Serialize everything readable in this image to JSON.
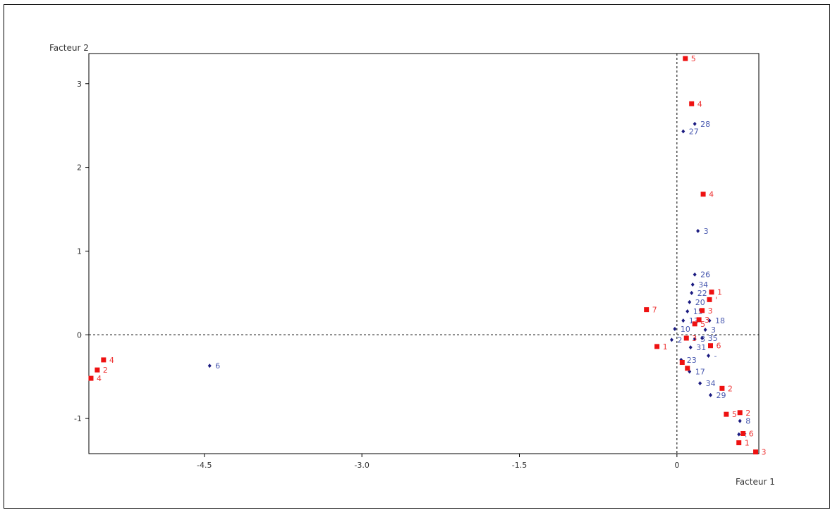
{
  "chart_data": {
    "type": "scatter",
    "xlabel": "Facteur 1",
    "ylabel": "Facteur 2",
    "xlim": [
      -5.6,
      0.78
    ],
    "ylim": [
      -1.42,
      3.36
    ],
    "x_ticks": [
      {
        "v": -4.5,
        "label": "-4.5"
      },
      {
        "v": -3.0,
        "label": "-3.0"
      },
      {
        "v": -1.5,
        "label": "-1.5"
      },
      {
        "v": 0,
        "label": "0"
      }
    ],
    "y_ticks": [
      {
        "v": 3,
        "label": "3"
      },
      {
        "v": 2,
        "label": "2"
      },
      {
        "v": 1,
        "label": "1"
      },
      {
        "v": 0,
        "label": "0"
      },
      {
        "v": -1,
        "label": "-1"
      }
    ],
    "series": [
      {
        "marker": "diamond",
        "color": "#1a1a80",
        "label_color": "#4a5ab0",
        "points": [
          {
            "x": -4.45,
            "y": -0.37,
            "label": "6"
          },
          {
            "x": 0.06,
            "y": 2.43,
            "label": "27"
          },
          {
            "x": 0.17,
            "y": 2.52,
            "label": "28"
          },
          {
            "x": 0.2,
            "y": 1.24,
            "label": "3"
          },
          {
            "x": 0.17,
            "y": 0.72,
            "label": "26"
          },
          {
            "x": 0.15,
            "y": 0.6,
            "label": "34"
          },
          {
            "x": 0.14,
            "y": 0.5,
            "label": "22"
          },
          {
            "x": 0.12,
            "y": 0.39,
            "label": "20"
          },
          {
            "x": 0.1,
            "y": 0.28,
            "label": "15"
          },
          {
            "x": 0.06,
            "y": 0.17,
            "label": "13"
          },
          {
            "x": 0.31,
            "y": 0.17,
            "label": "18"
          },
          {
            "x": 0.27,
            "y": 0.06,
            "label": "3"
          },
          {
            "x": -0.02,
            "y": 0.07,
            "label": "10"
          },
          {
            "x": -0.05,
            "y": -0.06,
            "label": "2"
          },
          {
            "x": 0.17,
            "y": -0.05,
            "label": "3"
          },
          {
            "x": 0.24,
            "y": -0.04,
            "label": "35"
          },
          {
            "x": 0.13,
            "y": -0.15,
            "label": "31"
          },
          {
            "x": 0.3,
            "y": -0.25,
            "label": "-"
          },
          {
            "x": 0.04,
            "y": -0.3,
            "label": "23"
          },
          {
            "x": 0.12,
            "y": -0.44,
            "label": "17"
          },
          {
            "x": 0.22,
            "y": -0.58,
            "label": "34"
          },
          {
            "x": 0.32,
            "y": -0.72,
            "label": "29"
          },
          {
            "x": 0.6,
            "y": -1.03,
            "label": "8"
          },
          {
            "x": 0.59,
            "y": -1.19,
            "label": ":"
          }
        ]
      },
      {
        "marker": "square",
        "color": "#ee1111",
        "label_color": "#ee3333",
        "points": [
          {
            "x": -5.58,
            "y": -0.52,
            "label": "4"
          },
          {
            "x": -5.52,
            "y": -0.42,
            "label": "2"
          },
          {
            "x": -5.46,
            "y": -0.3,
            "label": "4"
          },
          {
            "x": 0.08,
            "y": 3.3,
            "label": "5"
          },
          {
            "x": 0.14,
            "y": 2.76,
            "label": "4"
          },
          {
            "x": 0.25,
            "y": 1.68,
            "label": "4"
          },
          {
            "x": -0.29,
            "y": 0.3,
            "label": "7"
          },
          {
            "x": 0.33,
            "y": 0.51,
            "label": "1"
          },
          {
            "x": 0.31,
            "y": 0.42,
            "label": "'"
          },
          {
            "x": 0.24,
            "y": 0.29,
            "label": "3"
          },
          {
            "x": 0.21,
            "y": 0.18,
            "label": "3"
          },
          {
            "x": 0.17,
            "y": 0.13,
            "label": "5"
          },
          {
            "x": 0.09,
            "y": -0.04,
            "label": "3"
          },
          {
            "x": 0.32,
            "y": -0.13,
            "label": "6"
          },
          {
            "x": -0.19,
            "y": -0.14,
            "label": "1"
          },
          {
            "x": 0.05,
            "y": -0.33,
            "label": ""
          },
          {
            "x": 0.1,
            "y": -0.4,
            "label": ""
          },
          {
            "x": 0.43,
            "y": -0.64,
            "label": "2"
          },
          {
            "x": 0.47,
            "y": -0.95,
            "label": "5"
          },
          {
            "x": 0.6,
            "y": -0.93,
            "label": "2"
          },
          {
            "x": 0.63,
            "y": -1.18,
            "label": "6"
          },
          {
            "x": 0.59,
            "y": -1.29,
            "label": "1"
          },
          {
            "x": 0.75,
            "y": -1.4,
            "label": "3"
          }
        ]
      }
    ]
  }
}
